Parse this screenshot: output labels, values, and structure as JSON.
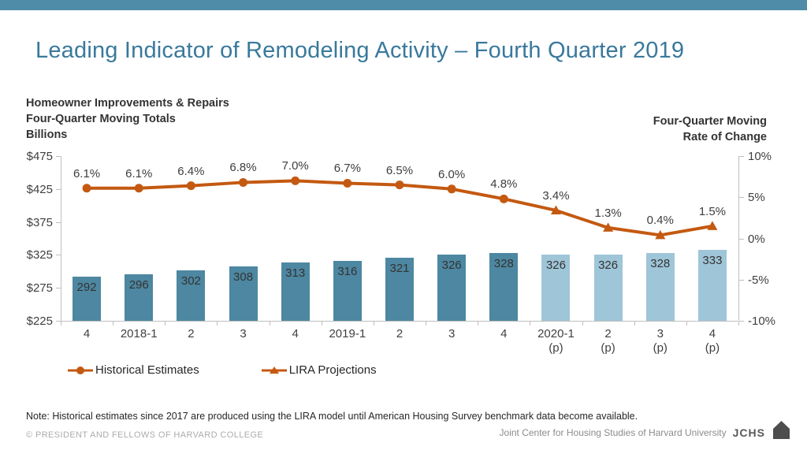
{
  "title": "Leading Indicator of Remodeling Activity – Fourth Quarter 2019",
  "chart_header_left": {
    "line1": "Homeowner Improvements & Repairs",
    "line2": "Four-Quarter Moving Totals",
    "line3": "Billions"
  },
  "chart_header_right": {
    "line1": "Four-Quarter Moving",
    "line2": "Rate of Change"
  },
  "chart_data": {
    "type": "combo (bar + line)",
    "categories": [
      "4",
      "2018-1",
      "2",
      "3",
      "4",
      "2019-1",
      "2",
      "3",
      "4",
      "2020-1\n(p)",
      "2\n(p)",
      "3\n(p)",
      "4\n(p)"
    ],
    "bars": {
      "name": "Homeowner Improvements & Repairs, Four-Quarter Moving Totals ($B)",
      "values": [
        292,
        296,
        302,
        308,
        313,
        316,
        321,
        326,
        328,
        326,
        326,
        328,
        333
      ],
      "split_index": 9,
      "color_historical": "#4D87A1",
      "color_projection": "#9FC5D8"
    },
    "line": {
      "name": "Four-Quarter Moving Rate of Change (%)",
      "values": [
        6.1,
        6.1,
        6.4,
        6.8,
        7.0,
        6.7,
        6.5,
        6.0,
        4.8,
        3.4,
        1.3,
        0.4,
        1.5
      ],
      "labels": [
        "6.1%",
        "6.1%",
        "6.4%",
        "6.8%",
        "7.0%",
        "6.7%",
        "6.5%",
        "6.0%",
        "4.8%",
        "3.4%",
        "1.3%",
        "0.4%",
        "1.5%"
      ],
      "split_index": 9,
      "color": "#C45911"
    },
    "left_axis": {
      "ticks": [
        "$475",
        "$425",
        "$375",
        "$325",
        "$275",
        "$225"
      ],
      "min": 225,
      "max": 475
    },
    "right_axis": {
      "ticks": [
        "10%",
        "5%",
        "0%",
        "-5%",
        "-10%"
      ],
      "min": -10,
      "max": 10
    },
    "grid": "off",
    "legend_position": "bottom-left"
  },
  "legend": {
    "items": [
      {
        "label": "Historical Estimates",
        "marker": "circle",
        "color": "#C45911"
      },
      {
        "label": "LIRA Projections",
        "marker": "triangle",
        "color": "#C45911"
      }
    ]
  },
  "note": "Note: Historical estimates since 2017 are produced using the LIRA model until American Housing Survey benchmark data become available.",
  "footer": {
    "copyright": "© PRESIDENT AND FELLOWS OF HARVARD COLLEGE",
    "org": "Joint Center for Housing Studies of Harvard University",
    "logo_text": "JCHS"
  },
  "colors": {
    "top_bar": "#4E8CA8",
    "title": "#39799C",
    "bar_historical": "#4D87A1",
    "bar_projection": "#9FC5D8",
    "line": "#C45911",
    "axis": "#BFBFBF",
    "logo": "#4D4D4D"
  }
}
